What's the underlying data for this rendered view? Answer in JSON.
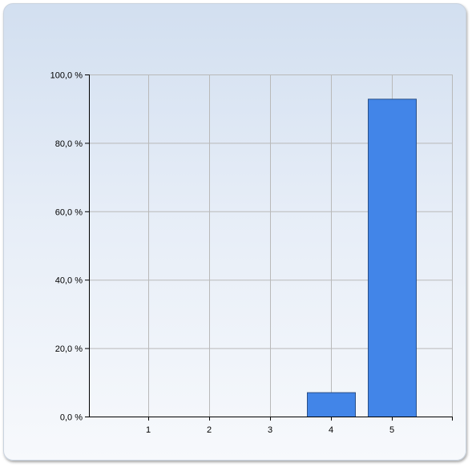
{
  "chart_data": {
    "type": "bar",
    "categories": [
      "1",
      "2",
      "3",
      "4",
      "5"
    ],
    "values": [
      0,
      0,
      0,
      7.1,
      92.9
    ],
    "ylim": [
      0,
      100
    ],
    "y_ticks": [
      0,
      20,
      40,
      60,
      80,
      100
    ],
    "y_tick_labels": [
      "0,0 %",
      "20,0 %",
      "40,0 %",
      "60,0 %",
      "80,0 %",
      "100,0 %"
    ],
    "grid": true,
    "title": "",
    "xlabel": "",
    "ylabel": "",
    "bar_color": "#4285e8",
    "bar_edge_color": "#2a4f86",
    "grid_color": "#b9b9b9"
  }
}
